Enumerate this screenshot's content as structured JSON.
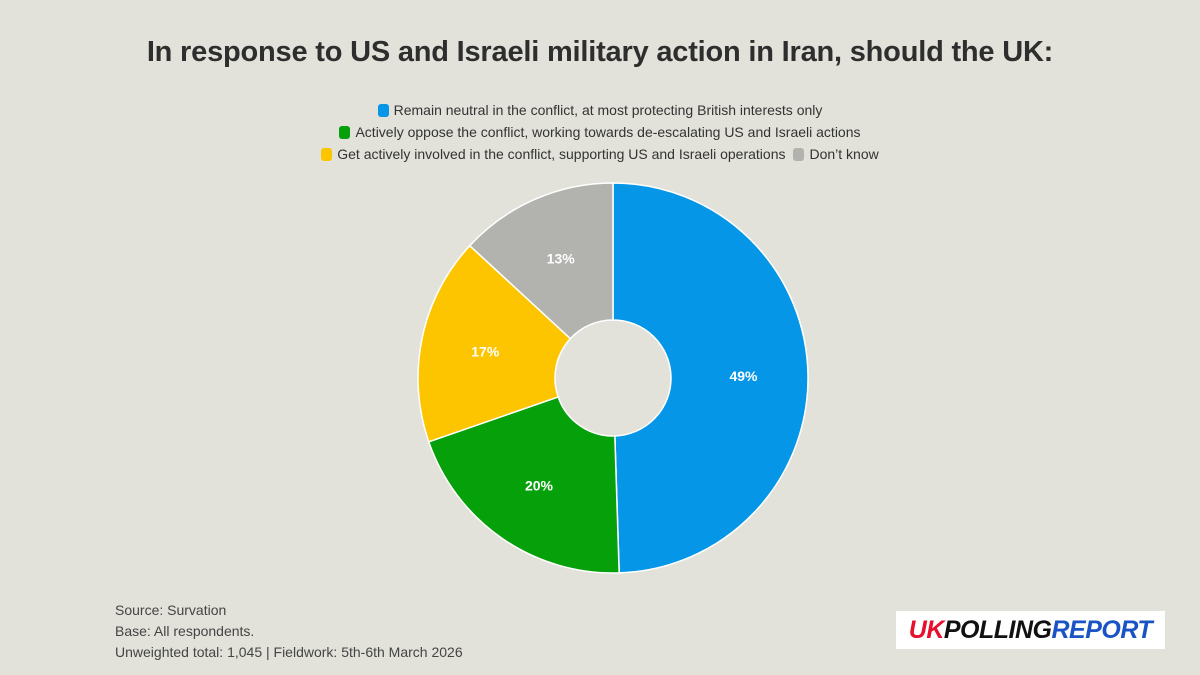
{
  "title": "In response to US and Israeli military action in Iran, should the UK:",
  "chart_data": {
    "type": "pie",
    "donut": true,
    "categories": [
      "Remain neutral in the conflict, at most protecting British interests only",
      "Actively oppose the conflict, working towards de-escalating US and Israeli actions",
      "Get actively involved in the conflict, supporting US and Israeli operations",
      "Don’t know"
    ],
    "values": [
      49,
      20,
      17,
      13
    ],
    "labels": [
      "49%",
      "20%",
      "17%",
      "13%"
    ],
    "colors": [
      "#0696e7",
      "#06a10a",
      "#fdc500",
      "#b2b2ae"
    ],
    "legend_position": "top"
  },
  "footer": {
    "source": "Source: Survation",
    "base": "Base: All respondents.",
    "fieldwork": "Unweighted total: 1,045 | Fieldwork: 5th-6th March 2026"
  },
  "logo": {
    "part1": "UK",
    "part2": "POLLING",
    "part3": "REPORT",
    "colors": {
      "uk": "#e8112d",
      "polling": "#111111",
      "report": "#1a54c4"
    }
  }
}
